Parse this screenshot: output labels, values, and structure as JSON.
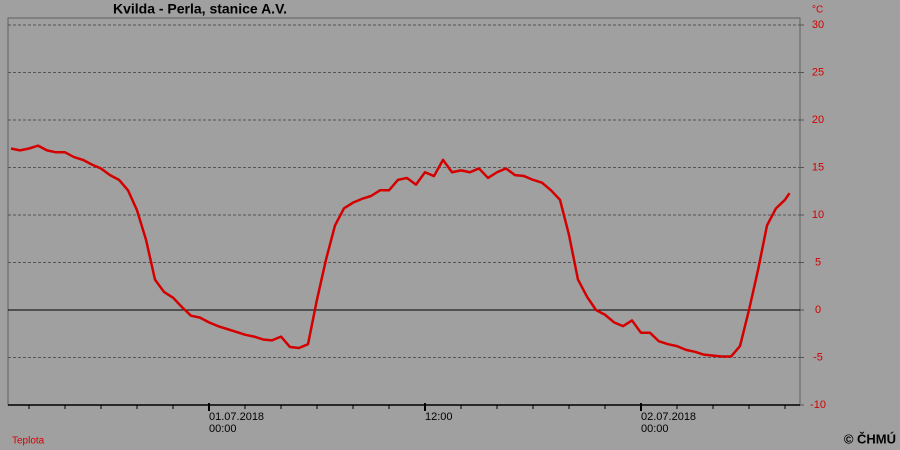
{
  "chart_data": {
    "type": "line",
    "title": "Kvilda - Perla, stanice A.V.",
    "y_unit": "°C",
    "credit": "© ČHMÚ",
    "xlim": [
      "30.06.2018 12:50",
      "02.07.2018 08:50"
    ],
    "xticks": [
      {
        "value": "01.07.2018 00:00",
        "label": [
          "01.07.2018",
          "00:00"
        ]
      },
      {
        "value": "01.07.2018 12:00",
        "label": [
          "12:00"
        ]
      },
      {
        "value": "02.07.2018 00:00",
        "label": [
          "02.07.2018",
          "00:00"
        ]
      }
    ],
    "minor_xticks": [
      "30.06.2018 14:00",
      "30.06.2018 16:00",
      "30.06.2018 18:00",
      "30.06.2018 20:00",
      "30.06.2018 22:00",
      "01.07.2018 02:00",
      "01.07.2018 04:00",
      "01.07.2018 06:00",
      "01.07.2018 08:00",
      "01.07.2018 10:00",
      "01.07.2018 14:00",
      "01.07.2018 16:00",
      "01.07.2018 18:00",
      "01.07.2018 20:00",
      "01.07.2018 22:00",
      "02.07.2018 02:00",
      "02.07.2018 04:00",
      "02.07.2018 06:00",
      "02.07.2018 08:00"
    ],
    "ylim": [
      -10,
      30
    ],
    "yticks": [
      -10,
      -5,
      0,
      5,
      10,
      15,
      20,
      25,
      30
    ],
    "grid": true,
    "zero_line": true,
    "x": [
      "30.06.2018 13:00",
      "30.06.2018 13:30",
      "30.06.2018 14:00",
      "30.06.2018 14:30",
      "30.06.2018 15:00",
      "30.06.2018 15:30",
      "30.06.2018 16:00",
      "30.06.2018 16:30",
      "30.06.2018 17:00",
      "30.06.2018 17:30",
      "30.06.2018 18:00",
      "30.06.2018 18:30",
      "30.06.2018 19:00",
      "30.06.2018 19:30",
      "30.06.2018 20:00",
      "30.06.2018 20:30",
      "30.06.2018 21:00",
      "30.06.2018 21:30",
      "30.06.2018 22:00",
      "30.06.2018 22:30",
      "30.06.2018 23:00",
      "30.06.2018 23:30",
      "01.07.2018 00:00",
      "01.07.2018 00:30",
      "01.07.2018 01:00",
      "01.07.2018 01:30",
      "01.07.2018 02:00",
      "01.07.2018 02:30",
      "01.07.2018 03:00",
      "01.07.2018 03:30",
      "01.07.2018 04:00",
      "01.07.2018 04:30",
      "01.07.2018 05:00",
      "01.07.2018 05:30",
      "01.07.2018 06:00",
      "01.07.2018 06:30",
      "01.07.2018 07:00",
      "01.07.2018 07:30",
      "01.07.2018 08:00",
      "01.07.2018 08:30",
      "01.07.2018 09:00",
      "01.07.2018 09:30",
      "01.07.2018 10:00",
      "01.07.2018 10:30",
      "01.07.2018 11:00",
      "01.07.2018 11:30",
      "01.07.2018 12:00",
      "01.07.2018 12:30",
      "01.07.2018 13:00",
      "01.07.2018 13:30",
      "01.07.2018 14:00",
      "01.07.2018 14:30",
      "01.07.2018 15:00",
      "01.07.2018 15:30",
      "01.07.2018 16:00",
      "01.07.2018 16:30",
      "01.07.2018 17:00",
      "01.07.2018 17:30",
      "01.07.2018 18:00",
      "01.07.2018 18:30",
      "01.07.2018 19:00",
      "01.07.2018 19:30",
      "01.07.2018 20:00",
      "01.07.2018 20:30",
      "01.07.2018 21:00",
      "01.07.2018 21:30",
      "01.07.2018 22:00",
      "01.07.2018 22:30",
      "01.07.2018 23:00",
      "01.07.2018 23:30",
      "02.07.2018 00:00",
      "02.07.2018 00:30",
      "02.07.2018 01:00",
      "02.07.2018 01:30",
      "02.07.2018 02:00",
      "02.07.2018 02:30",
      "02.07.2018 03:00",
      "02.07.2018 03:30",
      "02.07.2018 04:00",
      "02.07.2018 04:30",
      "02.07.2018 05:00",
      "02.07.2018 05:30",
      "02.07.2018 06:00",
      "02.07.2018 06:30",
      "02.07.2018 07:00",
      "02.07.2018 07:30",
      "02.07.2018 08:00",
      "02.07.2018 08:15"
    ],
    "series": [
      {
        "name": "Teplota",
        "color": "#d40000",
        "values": [
          17.0,
          16.8,
          17.0,
          17.3,
          16.8,
          16.6,
          16.6,
          16.1,
          15.8,
          15.3,
          14.9,
          14.2,
          13.7,
          12.6,
          10.5,
          7.4,
          3.2,
          1.9,
          1.3,
          0.3,
          -0.6,
          -0.8,
          -1.3,
          -1.7,
          -2.0,
          -2.3,
          -2.6,
          -2.8,
          -3.1,
          -3.2,
          -2.8,
          -3.9,
          -4.0,
          -3.6,
          1.1,
          5.3,
          8.9,
          10.7,
          11.3,
          11.7,
          12.0,
          12.6,
          12.6,
          13.7,
          13.9,
          13.2,
          14.5,
          14.1,
          15.8,
          14.5,
          14.7,
          14.5,
          14.9,
          13.9,
          14.5,
          14.9,
          14.2,
          14.1,
          13.7,
          13.4,
          12.6,
          11.6,
          7.9,
          3.2,
          1.4,
          0,
          -0.5,
          -1.3,
          -1.7,
          -1.1,
          -2.4,
          -2.4,
          -3.3,
          -3.6,
          -3.8,
          -4.2,
          -4.4,
          -4.7,
          -4.8,
          -4.9,
          -4.9,
          -3.8,
          0,
          4.2,
          8.9,
          10.7,
          11.6,
          12.3
        ]
      }
    ]
  }
}
